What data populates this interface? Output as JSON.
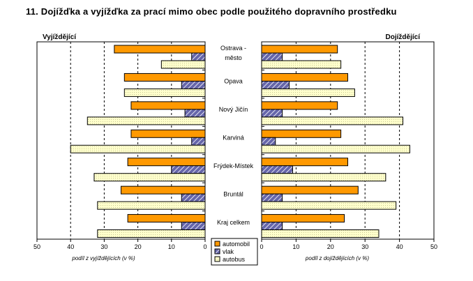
{
  "title": "11. Dojížďka a vyjížďka za prací mimo obec podle použitého dopravního prostředku",
  "colors": {
    "automobil": "#ff9900",
    "vlak": "#6666aa",
    "autobus": "#ffffcc"
  },
  "chart_data": {
    "type": "bar",
    "orientation": "horizontal",
    "categories": [
      "Ostrava - město",
      "Opava",
      "Nový Jičín",
      "Karviná",
      "Frýdek-Místek",
      "Bruntál",
      "Kraj celkem"
    ],
    "category_lines": [
      [
        "Ostrava -",
        "město"
      ],
      [
        "Opava"
      ],
      [
        "Nový Jičín"
      ],
      [
        "Karviná"
      ],
      [
        "Frýdek-Místek"
      ],
      [
        "Bruntál"
      ],
      [
        "Kraj celkem"
      ]
    ],
    "legend": [
      "automobil",
      "vlak",
      "autobus"
    ],
    "left": {
      "heading": "Vyjíždějící",
      "xlabel": "podíl z vyjíždějících (v %)",
      "xlim": [
        50,
        0
      ],
      "ticks": [
        50,
        40,
        30,
        20,
        10,
        0
      ],
      "series": [
        {
          "name": "automobil",
          "values": [
            27,
            24,
            22,
            22,
            23,
            25,
            23
          ]
        },
        {
          "name": "vlak",
          "values": [
            4,
            7,
            6,
            4,
            10,
            7,
            7
          ]
        },
        {
          "name": "autobus",
          "values": [
            13,
            24,
            35,
            40,
            33,
            32,
            32
          ]
        }
      ]
    },
    "right": {
      "heading": "Dojíždějící",
      "xlabel": "podíl z dojíždějících (v %)",
      "xlim": [
        0,
        50
      ],
      "ticks": [
        0,
        10,
        20,
        30,
        40,
        50
      ],
      "series": [
        {
          "name": "automobil",
          "values": [
            22,
            25,
            22,
            23,
            25,
            28,
            24
          ]
        },
        {
          "name": "vlak",
          "values": [
            6,
            8,
            6,
            4,
            9,
            6,
            6
          ]
        },
        {
          "name": "autobus",
          "values": [
            23,
            27,
            41,
            43,
            36,
            39,
            34
          ]
        }
      ]
    }
  }
}
